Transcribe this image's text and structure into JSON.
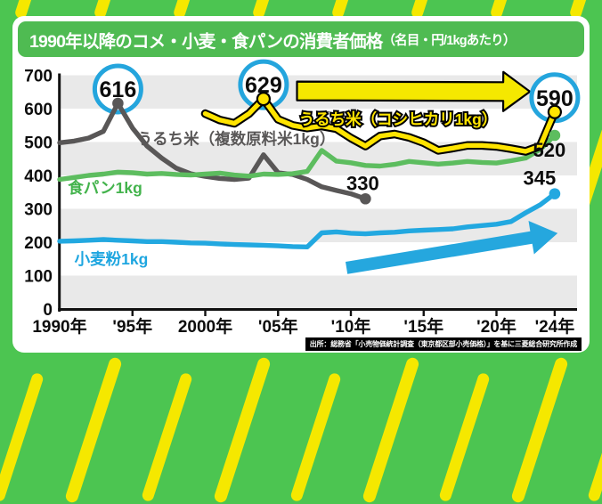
{
  "page": {
    "title_main": "1990年以降のコメ・小麦・食パンの消費者価格",
    "title_note": "（名目・円/1kgあたり）",
    "source": "出所：総務省「小売物価統計調査（東京都区部小売価格）」を基に三菱総合研究所作成"
  },
  "colors": {
    "background_green": "#4cc551",
    "stripe_yellow": "#f5e800",
    "title_bar_green": "#4fbb52",
    "band_gray": "#e9e9e9",
    "axis_black": "#111111",
    "callout_ring_cyan": "#24a5dd"
  },
  "chart_data": {
    "type": "line",
    "title": "1990年以降のコメ・小麦・食パンの消費者価格（名目・円/1kgあたり）",
    "x_axis": {
      "range": [
        1990,
        2024
      ],
      "ticks": [
        {
          "year": 1990,
          "label": "1990年"
        },
        {
          "year": 1995,
          "label": "'95年"
        },
        {
          "year": 2000,
          "label": "2000年"
        },
        {
          "year": 2005,
          "label": "'05年"
        },
        {
          "year": 2010,
          "label": "'10年"
        },
        {
          "year": 2015,
          "label": "'15年"
        },
        {
          "year": 2020,
          "label": "'20年"
        },
        {
          "year": 2024,
          "label": "'24年"
        }
      ]
    },
    "y_axis": {
      "min": 0,
      "max": 700,
      "tick_step": 100,
      "ticks": [
        0,
        100,
        200,
        300,
        400,
        500,
        600,
        700
      ]
    },
    "series": [
      {
        "id": "rice_blend",
        "label": "うるち米（複数原料米1kg）",
        "color": "#595757",
        "label_color": "#595757",
        "points": [
          [
            1990,
            498
          ],
          [
            1991,
            503
          ],
          [
            1992,
            512
          ],
          [
            1993,
            532
          ],
          [
            1994,
            616
          ],
          [
            1995,
            542
          ],
          [
            1996,
            488
          ],
          [
            1997,
            452
          ],
          [
            1998,
            422
          ],
          [
            1999,
            405
          ],
          [
            2000,
            397
          ],
          [
            2001,
            391
          ],
          [
            2002,
            388
          ],
          [
            2003,
            392
          ],
          [
            2004,
            462
          ],
          [
            2005,
            408
          ],
          [
            2006,
            403
          ],
          [
            2007,
            388
          ],
          [
            2008,
            366
          ],
          [
            2009,
            355
          ],
          [
            2010,
            345
          ],
          [
            2011,
            330
          ]
        ]
      },
      {
        "id": "bread",
        "label": "食パン1kg",
        "color": "#5dbd5f",
        "label_color": "#43b34c",
        "points": [
          [
            1990,
            388
          ],
          [
            1991,
            394
          ],
          [
            1992,
            400
          ],
          [
            1993,
            404
          ],
          [
            1994,
            410
          ],
          [
            1995,
            408
          ],
          [
            1996,
            404
          ],
          [
            1997,
            406
          ],
          [
            1998,
            403
          ],
          [
            1999,
            401
          ],
          [
            2000,
            404
          ],
          [
            2001,
            407
          ],
          [
            2002,
            401
          ],
          [
            2003,
            398
          ],
          [
            2004,
            404
          ],
          [
            2005,
            403
          ],
          [
            2006,
            405
          ],
          [
            2007,
            412
          ],
          [
            2008,
            475
          ],
          [
            2009,
            443
          ],
          [
            2010,
            438
          ],
          [
            2011,
            430
          ],
          [
            2012,
            428
          ],
          [
            2013,
            433
          ],
          [
            2014,
            442
          ],
          [
            2015,
            438
          ],
          [
            2016,
            434
          ],
          [
            2017,
            437
          ],
          [
            2018,
            442
          ],
          [
            2019,
            439
          ],
          [
            2020,
            437
          ],
          [
            2021,
            444
          ],
          [
            2022,
            452
          ],
          [
            2023,
            478
          ],
          [
            2024,
            520
          ]
        ]
      },
      {
        "id": "flour",
        "label": "小麦粉1kg",
        "color": "#22a8e0",
        "label_color": "#1ea6e0",
        "points": [
          [
            1990,
            203
          ],
          [
            1991,
            204
          ],
          [
            1992,
            206
          ],
          [
            1993,
            208
          ],
          [
            1994,
            206
          ],
          [
            1995,
            204
          ],
          [
            1996,
            202
          ],
          [
            1997,
            202
          ],
          [
            1998,
            200
          ],
          [
            1999,
            198
          ],
          [
            2000,
            197
          ],
          [
            2001,
            195
          ],
          [
            2002,
            193
          ],
          [
            2003,
            192
          ],
          [
            2004,
            191
          ],
          [
            2005,
            189
          ],
          [
            2006,
            187
          ],
          [
            2007,
            186
          ],
          [
            2008,
            228
          ],
          [
            2009,
            231
          ],
          [
            2010,
            227
          ],
          [
            2011,
            225
          ],
          [
            2012,
            228
          ],
          [
            2013,
            230
          ],
          [
            2014,
            234
          ],
          [
            2015,
            236
          ],
          [
            2016,
            238
          ],
          [
            2017,
            240
          ],
          [
            2018,
            246
          ],
          [
            2019,
            250
          ],
          [
            2020,
            254
          ],
          [
            2021,
            262
          ],
          [
            2022,
            288
          ],
          [
            2023,
            312
          ],
          [
            2024,
            345
          ]
        ]
      },
      {
        "id": "rice_koshihikari",
        "label": "うるち米（コシヒカリ1kg）",
        "color": "#ffe400",
        "outline": "#000000",
        "label_color": "#ffe400",
        "points": [
          [
            2000,
            585
          ],
          [
            2001,
            566
          ],
          [
            2002,
            556
          ],
          [
            2003,
            585
          ],
          [
            2004,
            629
          ],
          [
            2005,
            568
          ],
          [
            2006,
            550
          ],
          [
            2007,
            542
          ],
          [
            2008,
            548
          ],
          [
            2009,
            540
          ],
          [
            2010,
            512
          ],
          [
            2011,
            488
          ],
          [
            2012,
            518
          ],
          [
            2013,
            524
          ],
          [
            2014,
            514
          ],
          [
            2015,
            498
          ],
          [
            2016,
            475
          ],
          [
            2017,
            482
          ],
          [
            2018,
            490
          ],
          [
            2019,
            490
          ],
          [
            2020,
            487
          ],
          [
            2021,
            480
          ],
          [
            2022,
            472
          ],
          [
            2023,
            488
          ],
          [
            2024,
            590
          ]
        ]
      }
    ],
    "callouts": [
      {
        "series": "rice_blend",
        "year": 1994,
        "value": 616,
        "label": "616",
        "style": "circle"
      },
      {
        "series": "rice_koshihikari",
        "year": 2004,
        "value": 629,
        "label": "629",
        "style": "circle"
      },
      {
        "series": "rice_koshihikari",
        "year": 2024,
        "value": 590,
        "label": "590",
        "style": "circle"
      },
      {
        "series": "rice_blend",
        "year": 2011,
        "value": 330,
        "label": "330",
        "style": "text"
      },
      {
        "series": "bread",
        "year": 2024,
        "value": 520,
        "label": "520",
        "style": "text"
      },
      {
        "series": "flour",
        "year": 2024,
        "value": 345,
        "label": "345",
        "style": "text"
      }
    ],
    "annotations": {
      "arrows": [
        {
          "id": "koshihikari-trend-arrow",
          "color": "#f5e800",
          "outline": "#000000",
          "from": {
            "year": 2006.3,
            "value": 653
          },
          "to": {
            "year": 2022.3,
            "value": 651
          },
          "body_width": 21,
          "head_width": 44,
          "head_length": 30
        },
        {
          "id": "flour-trend-arrow",
          "color": "#25a7de",
          "from": {
            "year": 2009.7,
            "value": 123
          },
          "to": {
            "year": 2024.2,
            "value": 227
          },
          "body_width": 14,
          "head_width": 38,
          "head_length": 30
        }
      ]
    }
  }
}
